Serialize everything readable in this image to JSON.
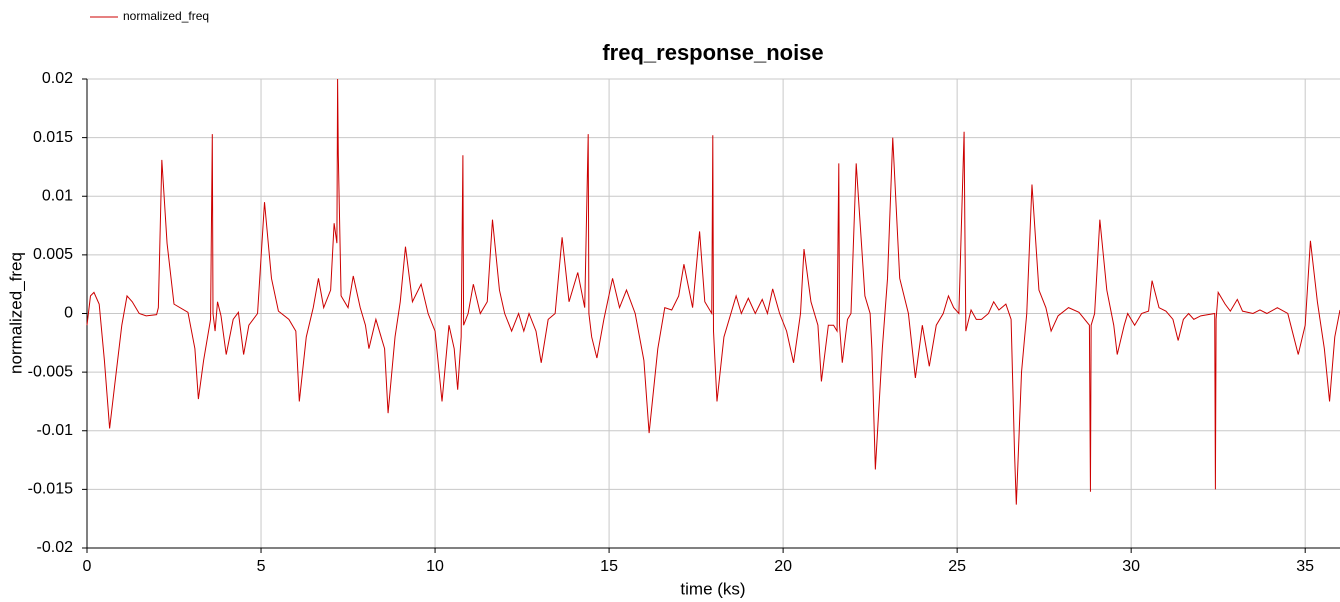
{
  "chart_data": {
    "type": "line",
    "title": "freq_response_noise",
    "xlabel": "time (ks)",
    "ylabel": "normalized_freq",
    "xlim": [
      0,
      36
    ],
    "ylim": [
      -0.02,
      0.02
    ],
    "xticks": [
      0,
      5,
      10,
      15,
      20,
      25,
      30,
      35
    ],
    "yticks": [
      -0.02,
      -0.015,
      -0.01,
      -0.005,
      0,
      0.005,
      0.01,
      0.015,
      0.02
    ],
    "grid": true,
    "legend": "top-left",
    "x": [
      0,
      0.1,
      0.2,
      0.35,
      0.5,
      0.65,
      0.8,
      1.0,
      1.15,
      1.3,
      1.5,
      1.7,
      2.0,
      2.05,
      2.15,
      2.3,
      2.5,
      2.9,
      3.1,
      3.2,
      3.35,
      3.55,
      3.6,
      3.62,
      3.68,
      3.75,
      3.85,
      4.0,
      4.2,
      4.35,
      4.5,
      4.65,
      4.9,
      5.1,
      5.3,
      5.5,
      5.8,
      6.0,
      6.1,
      6.3,
      6.5,
      6.65,
      6.8,
      7.0,
      7.1,
      7.18,
      7.2,
      7.22,
      7.3,
      7.5,
      7.65,
      7.85,
      8.0,
      8.1,
      8.3,
      8.55,
      8.65,
      8.85,
      9.0,
      9.15,
      9.35,
      9.6,
      9.8,
      10.0,
      10.2,
      10.4,
      10.55,
      10.65,
      10.75,
      10.8,
      10.82,
      10.95,
      11.1,
      11.3,
      11.5,
      11.65,
      11.85,
      12.0,
      12.2,
      12.4,
      12.55,
      12.7,
      12.9,
      13.05,
      13.25,
      13.45,
      13.65,
      13.85,
      14.1,
      14.3,
      14.4,
      14.42,
      14.5,
      14.65,
      14.85,
      15.1,
      15.3,
      15.5,
      15.75,
      16.0,
      16.15,
      16.4,
      16.6,
      16.8,
      17.0,
      17.15,
      17.4,
      17.6,
      17.75,
      17.95,
      17.98,
      18.0,
      18.1,
      18.3,
      18.5,
      18.65,
      18.8,
      19.0,
      19.2,
      19.4,
      19.55,
      19.7,
      19.9,
      20.1,
      20.3,
      20.5,
      20.6,
      20.8,
      21.0,
      21.1,
      21.3,
      21.45,
      21.55,
      21.6,
      21.62,
      21.7,
      21.85,
      21.95,
      22.1,
      22.35,
      22.5,
      22.55,
      22.65,
      22.85,
      23.0,
      23.15,
      23.35,
      23.6,
      23.8,
      24.0,
      24.2,
      24.4,
      24.6,
      24.75,
      24.9,
      25.05,
      25.2,
      25.22,
      25.25,
      25.4,
      25.55,
      25.7,
      25.9,
      26.05,
      26.2,
      26.4,
      26.55,
      26.65,
      26.7,
      26.85,
      27.0,
      27.15,
      27.35,
      27.55,
      27.7,
      27.9,
      28.2,
      28.5,
      28.8,
      28.83,
      28.85,
      28.95,
      29.1,
      29.3,
      29.5,
      29.6,
      29.8,
      29.9,
      30.1,
      30.3,
      30.5,
      30.6,
      30.8,
      31.0,
      31.2,
      31.35,
      31.5,
      31.65,
      31.8,
      32.0,
      32.4,
      32.42,
      32.44,
      32.5,
      32.7,
      32.85,
      33.05,
      33.2,
      33.5,
      33.7,
      33.9,
      34.2,
      34.5,
      34.8,
      35.0,
      35.15,
      35.35,
      35.55,
      35.7,
      35.85,
      36.0
    ],
    "series": [
      {
        "name": "normalized_freq",
        "color": "#cc0000",
        "values": [
          -0.001,
          0.0015,
          0.0018,
          0.0008,
          -0.004,
          -0.0098,
          -0.006,
          -0.001,
          0.0015,
          0.001,
          0,
          -0.0002,
          -0.0001,
          0.0005,
          0.0131,
          0.006,
          0.0008,
          0.0001,
          -0.003,
          -0.0073,
          -0.004,
          -0.0005,
          0.0153,
          0,
          -0.0015,
          0.001,
          -0.0002,
          -0.0035,
          -0.0005,
          0.0001,
          -0.0035,
          -0.001,
          0,
          0.0095,
          0.003,
          0.0002,
          -0.0005,
          -0.0015,
          -0.0075,
          -0.002,
          0.0005,
          0.003,
          0.0005,
          0.002,
          0.0077,
          0.006,
          0.02,
          0.0135,
          0.0015,
          0.0005,
          0.0032,
          0.0005,
          -0.001,
          -0.003,
          -0.0005,
          -0.003,
          -0.0085,
          -0.002,
          0.001,
          0.0057,
          0.001,
          0.0025,
          0,
          -0.0015,
          -0.0075,
          -0.001,
          -0.003,
          -0.0065,
          -0.002,
          0.0135,
          -0.001,
          0,
          0.0025,
          0,
          0.001,
          0.008,
          0.002,
          0,
          -0.0015,
          0,
          -0.0015,
          0,
          -0.0015,
          -0.0042,
          -0.0005,
          0,
          0.0065,
          0.001,
          0.0035,
          0.0005,
          0.0153,
          0,
          -0.002,
          -0.0038,
          -0.0005,
          0.003,
          0.0005,
          0.002,
          0,
          -0.004,
          -0.0102,
          -0.003,
          0.0005,
          0.0003,
          0.0015,
          0.0042,
          0.0005,
          0.007,
          0.001,
          0,
          0.0152,
          -0.0015,
          -0.0075,
          -0.002,
          0,
          0.0015,
          0,
          0.0013,
          0,
          0.0012,
          0,
          0.0021,
          0,
          -0.0015,
          -0.0042,
          0,
          0.0055,
          0.001,
          -0.001,
          -0.0058,
          -0.001,
          -0.001,
          -0.0015,
          0.0128,
          -0.001,
          -0.0042,
          -0.0005,
          0,
          0.0128,
          0.0015,
          0,
          -0.003,
          -0.0133,
          -0.003,
          0.003,
          0.015,
          0.003,
          0,
          -0.0055,
          -0.001,
          -0.0045,
          -0.001,
          0,
          0.0015,
          0.0005,
          0,
          0.0155,
          0.008,
          -0.0015,
          0.0003,
          -0.0005,
          -0.0005,
          0,
          0.001,
          0.0003,
          0.0008,
          -0.0005,
          -0.012,
          -0.0163,
          -0.005,
          0,
          0.011,
          0.002,
          0.0005,
          -0.0015,
          -0.0002,
          0.0005,
          0.0001,
          -0.001,
          -0.0152,
          -0.001,
          0,
          0.008,
          0.002,
          -0.001,
          -0.0035,
          -0.001,
          0,
          -0.001,
          0,
          0.0002,
          0.0028,
          0.0005,
          0.0002,
          -0.0005,
          -0.0023,
          -0.0005,
          0,
          -0.0005,
          -0.0002,
          0,
          -0.015,
          -0.0005,
          0.0018,
          0.0008,
          0.0002,
          0.0012,
          0.0002,
          0,
          0.0003,
          0,
          0.0005,
          0,
          -0.0035,
          -0.001,
          0.0062,
          0.001,
          -0.003,
          -0.0075,
          -0.002,
          0.0003
        ]
      }
    ]
  }
}
